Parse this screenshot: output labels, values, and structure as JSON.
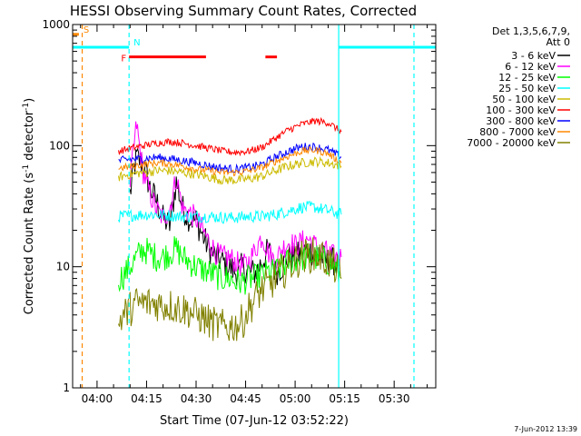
{
  "chart_data": {
    "type": "line",
    "title": "HESSI Observing Summary Count Rates, Corrected",
    "xlabel": "Start Time (07-Jun-12 03:52:22)",
    "ylabel": "Corrected Count Rate (s⁻¹ detector⁻¹)",
    "y_scale": "log",
    "ylim": [
      1,
      1000
    ],
    "xlim_minutes": [
      -7.4,
      102.6
    ],
    "x_ticks": [
      {
        "m": 0,
        "label": "04:00"
      },
      {
        "m": 15,
        "label": "04:15"
      },
      {
        "m": 30,
        "label": "04:30"
      },
      {
        "m": 45,
        "label": "04:45"
      },
      {
        "m": 60,
        "label": "05:00"
      },
      {
        "m": 75,
        "label": "05:15"
      },
      {
        "m": 90,
        "label": "05:30"
      }
    ],
    "y_ticks": [
      {
        "v": 1,
        "label": "1"
      },
      {
        "v": 10,
        "label": "10"
      },
      {
        "v": 100,
        "label": "100"
      },
      {
        "v": 1000,
        "label": "1000"
      }
    ],
    "legend": {
      "placement": "right",
      "header": [
        "Det 1,3,5,6,7,9,",
        "Att 0"
      ]
    },
    "series": [
      {
        "name": "3 - 6 keV",
        "color": "#000000",
        "x": [
          10,
          11,
          12,
          14,
          16,
          18,
          20,
          22,
          24,
          26,
          28,
          30,
          32,
          34,
          36,
          38,
          40,
          42,
          44,
          46,
          48,
          50,
          52,
          54,
          56,
          58,
          60,
          62,
          64,
          66,
          68,
          70,
          72,
          73
        ],
        "y": [
          40,
          60,
          80,
          70,
          45,
          35,
          25,
          22,
          50,
          30,
          25,
          24,
          18,
          14,
          12,
          11,
          10,
          9,
          10,
          9,
          9,
          11,
          14,
          9,
          10,
          12,
          12,
          13,
          14,
          12,
          12,
          11,
          11,
          10
        ]
      },
      {
        "name": "6 - 12 keV",
        "color": "#ff00ff",
        "x": [
          10,
          11,
          12,
          13,
          14,
          16,
          18,
          20,
          22,
          24,
          26,
          28,
          30,
          32,
          34,
          36,
          38,
          40,
          42,
          44,
          46,
          48,
          50,
          52,
          54,
          56,
          58,
          60,
          62,
          64,
          66,
          68,
          70,
          72,
          74
        ],
        "y": [
          50,
          90,
          150,
          90,
          60,
          40,
          30,
          25,
          30,
          55,
          30,
          28,
          25,
          20,
          16,
          13,
          12,
          12,
          11,
          10,
          11,
          14,
          18,
          13,
          11,
          14,
          16,
          15,
          16,
          17,
          15,
          14,
          13,
          12,
          12
        ]
      },
      {
        "name": "12 - 25 keV",
        "color": "#00ff00",
        "x": [
          6.5,
          8,
          10,
          12,
          14,
          16,
          18,
          20,
          22,
          24,
          26,
          28,
          30,
          32,
          34,
          36,
          38,
          40,
          42,
          44,
          46,
          48,
          50,
          52,
          54,
          56,
          58,
          60,
          62,
          64,
          66,
          68,
          70,
          72,
          74
        ],
        "y": [
          8,
          8.5,
          10,
          12,
          14,
          13,
          12,
          12,
          13,
          14,
          12,
          11,
          10,
          9.5,
          9,
          8.5,
          8,
          8,
          7.5,
          7.5,
          8,
          8,
          8.5,
          9,
          9,
          10,
          11,
          11.5,
          12,
          12,
          12,
          11.5,
          11,
          10,
          8
        ]
      },
      {
        "name": "25 - 50 keV",
        "color": "#00ffff",
        "x": [
          6.5,
          10,
          14,
          18,
          22,
          26,
          30,
          34,
          38,
          42,
          46,
          50,
          54,
          58,
          62,
          66,
          70,
          74
        ],
        "y": [
          26,
          26.5,
          27,
          27,
          26.5,
          26,
          26,
          26,
          25.5,
          25.5,
          26,
          26,
          27,
          29,
          31,
          31,
          29,
          27
        ]
      },
      {
        "name": "50 - 100 keV",
        "color": "#ccbb00",
        "x": [
          6.5,
          10,
          14,
          18,
          22,
          26,
          30,
          34,
          38,
          42,
          46,
          50,
          54,
          58,
          62,
          66,
          70,
          74
        ],
        "y": [
          55,
          58,
          60,
          62,
          62,
          60,
          58,
          55,
          52,
          52,
          53,
          56,
          62,
          68,
          72,
          74,
          72,
          68
        ]
      },
      {
        "name": "100 - 300 keV",
        "color": "#ff0000",
        "x": [
          6.5,
          10,
          14,
          18,
          22,
          26,
          30,
          34,
          38,
          42,
          46,
          50,
          54,
          58,
          62,
          66,
          70,
          74
        ],
        "y": [
          90,
          95,
          100,
          105,
          108,
          105,
          100,
          95,
          90,
          88,
          90,
          97,
          115,
          135,
          150,
          160,
          155,
          130
        ]
      },
      {
        "name": "300 - 800 keV",
        "color": "#0000ff",
        "x": [
          6.5,
          10,
          14,
          18,
          22,
          26,
          30,
          34,
          38,
          42,
          46,
          50,
          54,
          58,
          62,
          66,
          70,
          74
        ],
        "y": [
          75,
          77,
          78,
          80,
          78,
          75,
          72,
          68,
          65,
          64,
          66,
          70,
          80,
          90,
          98,
          98,
          92,
          80
        ]
      },
      {
        "name": "800 - 7000 keV",
        "color": "#ff8800",
        "x": [
          6.5,
          10,
          14,
          18,
          22,
          26,
          30,
          34,
          38,
          42,
          46,
          50,
          54,
          58,
          62,
          66,
          70,
          74
        ],
        "y": [
          65,
          67,
          70,
          72,
          71,
          68,
          64,
          62,
          60,
          60,
          62,
          66,
          74,
          82,
          90,
          92,
          86,
          72
        ]
      },
      {
        "name": "7000 - 20000 keV",
        "color": "#808000",
        "x": [
          6.5,
          8,
          10,
          12,
          14,
          16,
          18,
          20,
          22,
          24,
          26,
          28,
          30,
          32,
          34,
          36,
          38,
          40,
          42,
          44,
          46,
          48,
          50,
          52,
          54,
          56,
          58,
          60,
          62,
          64,
          66,
          68,
          70,
          72,
          74
        ],
        "y": [
          3.5,
          4,
          4.5,
          5,
          5,
          5,
          5,
          4.8,
          4.8,
          4.6,
          4.5,
          4.3,
          4,
          3.8,
          3.5,
          3.3,
          3.2,
          3.2,
          3.3,
          3.5,
          4.5,
          5.5,
          6.5,
          7,
          8,
          9,
          10,
          11,
          12,
          12.5,
          12.5,
          12,
          11,
          10,
          8
        ]
      }
    ],
    "annotations": [
      {
        "type": "vline",
        "m": -4.5,
        "color": "#ff8800",
        "style": "dashed"
      },
      {
        "type": "vline",
        "m": 9.7,
        "color": "#00ffff",
        "style": "dashed"
      },
      {
        "type": "vline",
        "m": 73.2,
        "color": "#00ffff",
        "style": "solid"
      },
      {
        "type": "vline",
        "m": 96,
        "color": "#00ffff",
        "style": "dashed"
      },
      {
        "type": "flag",
        "label": "S",
        "color": "#ff8800",
        "m_start": -7.4,
        "m_end": -5.5,
        "value": 830
      },
      {
        "type": "flag",
        "label": "N",
        "color": "#00ffff",
        "m_start": -7.4,
        "m_end": 9.7,
        "value": 650
      },
      {
        "type": "flag",
        "label": "",
        "color": "#00ffff",
        "m_start": 73.2,
        "m_end": 102.6,
        "value": 650
      },
      {
        "type": "flag",
        "label": "F",
        "color": "#ff0000",
        "m_start": 9.7,
        "m_end": 33,
        "value": 540
      },
      {
        "type": "flag",
        "label": "",
        "color": "#ff0000",
        "m_start": 51,
        "m_end": 54.5,
        "value": 540
      }
    ]
  },
  "footer_date": "7-Jun-2012 13:39"
}
